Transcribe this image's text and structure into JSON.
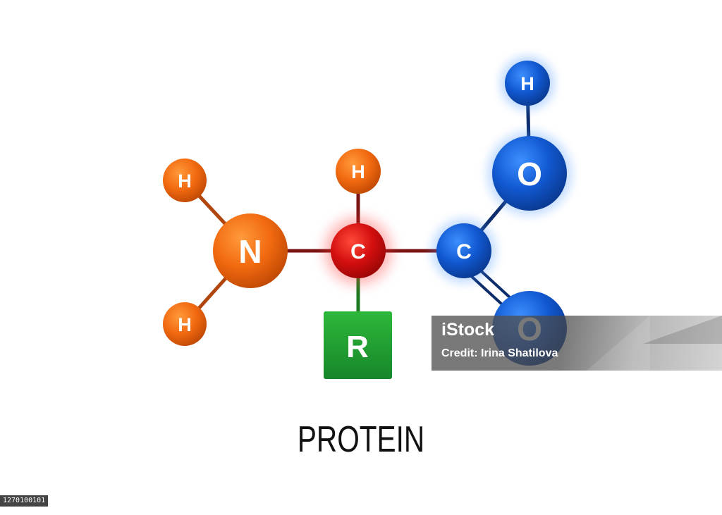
{
  "diagram": {
    "title": "PROTEIN",
    "atoms": {
      "h_nitrogen_top": "H",
      "h_nitrogen_bottom": "H",
      "nitrogen": "N",
      "h_alpha": "H",
      "c_alpha": "C",
      "c_carboxyl": "C",
      "o_hydroxyl": "O",
      "h_hydroxyl": "H",
      "o_carbonyl": "O",
      "r_group": "R"
    }
  },
  "watermark": {
    "logo": "iStock",
    "credit": "Credit: Irina Shatilova"
  },
  "stock_id": "1270100101",
  "colors": {
    "orange": "#F26A10",
    "red": "#D40F0F",
    "blue": "#1158D0",
    "green": "#1E9B2A",
    "bond_dark_red": "#7A1414",
    "bond_dark_blue": "#0D2C6B",
    "bond_green": "#1E7A22"
  }
}
